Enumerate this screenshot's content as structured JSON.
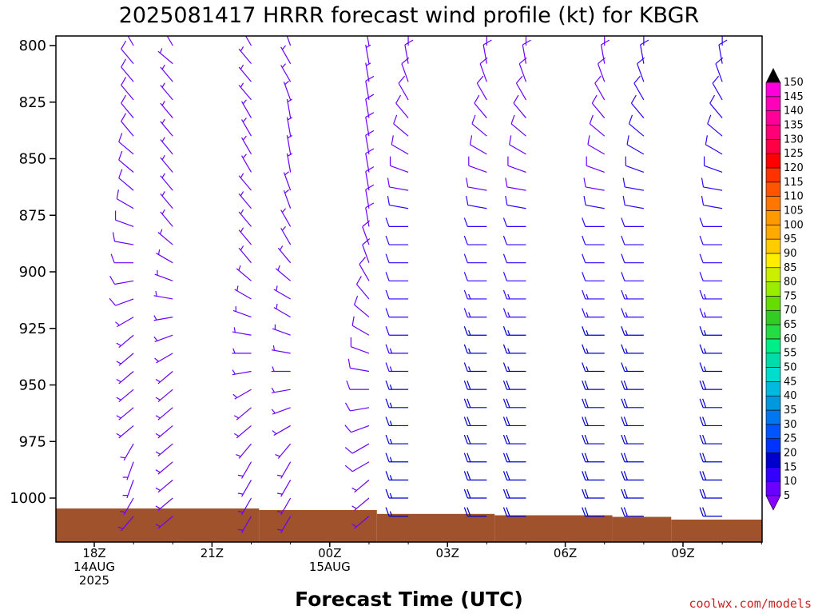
{
  "chart_data": {
    "type": "wind-barb-time-height",
    "title": "2025081417 HRRR forecast wind profile (kt) for KBGR",
    "xlabel": "Forecast Time (UTC)",
    "credit": "coolwx.com/models",
    "x_ticks": [
      {
        "hour": 18,
        "lines": [
          "18Z",
          "14AUG",
          "2025"
        ]
      },
      {
        "hour": 21,
        "lines": [
          "21Z"
        ]
      },
      {
        "hour": 24,
        "lines": [
          "00Z",
          "15AUG"
        ]
      },
      {
        "hour": 27,
        "lines": [
          "03Z"
        ]
      },
      {
        "hour": 30,
        "lines": [
          "06Z"
        ]
      },
      {
        "hour": 33,
        "lines": [
          "09Z"
        ]
      }
    ],
    "xlim": [
      17,
      35
    ],
    "ylim": [
      1018,
      796
    ],
    "y_ticks": [
      800,
      825,
      850,
      875,
      900,
      925,
      950,
      975,
      1000
    ],
    "units": "kt",
    "colorbar_levels": [
      5,
      10,
      15,
      20,
      25,
      30,
      35,
      40,
      45,
      50,
      55,
      60,
      65,
      70,
      75,
      80,
      85,
      90,
      95,
      100,
      105,
      110,
      115,
      120,
      125,
      130,
      135,
      140,
      145,
      150
    ],
    "colorbar_colors": [
      "#8800ff",
      "#6a00ff",
      "#3300ff",
      "#0000cc",
      "#0033ff",
      "#0055ff",
      "#0077ee",
      "#0099dd",
      "#00bbdd",
      "#00ddcc",
      "#00ddaa",
      "#00ee88",
      "#22dd44",
      "#33cc22",
      "#66dd00",
      "#99ee00",
      "#ccee00",
      "#ffee00",
      "#ffcc00",
      "#ffaa00",
      "#ff9900",
      "#ff7700",
      "#ff5500",
      "#ff3300",
      "#ff0000",
      "#ff0044",
      "#ff0077",
      "#ff0099",
      "#ff00bb",
      "#ff00dd",
      "#ff00ff"
    ],
    "wind_profiles": [
      {
        "hour": 17,
        "spd": [
          null,
          null,
          null,
          null,
          null,
          null,
          null,
          null,
          null,
          null,
          null,
          null,
          null,
          null,
          null,
          null,
          null,
          null,
          null,
          7,
          7,
          7,
          7,
          7,
          7,
          7,
          7
        ],
        "dir": [
          null,
          null,
          null,
          null,
          null,
          null,
          null,
          null,
          null,
          null,
          null,
          null,
          null,
          null,
          null,
          null,
          null,
          null,
          null,
          185,
          185,
          185,
          185,
          185,
          185,
          185,
          185
        ]
      },
      {
        "hour": 19,
        "spd": [
          8,
          8,
          8,
          8,
          8,
          8,
          8,
          8,
          8,
          8,
          8,
          8,
          8,
          8,
          8,
          6,
          6,
          6,
          6,
          6,
          6,
          6,
          5,
          5,
          5,
          5,
          5
        ],
        "dir": [
          330,
          320,
          320,
          320,
          320,
          320,
          310,
          310,
          310,
          300,
          290,
          280,
          270,
          260,
          250,
          240,
          230,
          230,
          230,
          230,
          230,
          230,
          210,
          200,
          200,
          210,
          220
        ]
      },
      {
        "hour": 20,
        "spd": [
          7,
          7,
          7,
          7,
          7,
          7,
          7,
          7,
          7,
          7,
          7,
          7,
          7,
          7,
          7,
          7,
          6,
          6,
          6,
          6,
          6,
          6,
          6,
          6,
          6,
          6,
          6
        ],
        "dir": [
          330,
          310,
          320,
          320,
          320,
          320,
          320,
          320,
          320,
          320,
          320,
          310,
          300,
          290,
          280,
          260,
          250,
          240,
          230,
          230,
          230,
          230,
          230,
          230,
          230,
          230,
          230
        ]
      },
      {
        "hour": 22,
        "spd": [
          7,
          7,
          7,
          7,
          7,
          7,
          7,
          7,
          7,
          7,
          7,
          7,
          6,
          6,
          6,
          6,
          6,
          6,
          6,
          6,
          6,
          6,
          6,
          6,
          6,
          6,
          6
        ],
        "dir": [
          330,
          320,
          320,
          320,
          330,
          330,
          330,
          330,
          320,
          320,
          320,
          320,
          320,
          310,
          300,
          290,
          280,
          270,
          260,
          240,
          230,
          230,
          220,
          210,
          210,
          210,
          210
        ]
      },
      {
        "hour": 23,
        "spd": [
          7,
          7,
          7,
          7,
          7,
          7,
          7,
          7,
          7,
          7,
          7,
          7,
          7,
          7,
          6,
          6,
          6,
          6,
          6,
          6,
          6,
          6,
          6,
          6,
          6,
          6,
          6
        ],
        "dir": [
          340,
          330,
          330,
          340,
          350,
          350,
          350,
          350,
          340,
          340,
          330,
          330,
          320,
          310,
          300,
          300,
          290,
          280,
          270,
          260,
          250,
          240,
          220,
          210,
          210,
          210,
          210
        ]
      },
      {
        "hour": 25,
        "spd": [
          7,
          7,
          7,
          8,
          8,
          8,
          8,
          8,
          8,
          8,
          8,
          8,
          8,
          8,
          8,
          8,
          8,
          8,
          8,
          8,
          8,
          8,
          8,
          8,
          7,
          7,
          7
        ],
        "dir": [
          350,
          350,
          350,
          350,
          350,
          350,
          350,
          350,
          350,
          350,
          350,
          340,
          340,
          330,
          320,
          310,
          300,
          290,
          280,
          270,
          260,
          250,
          240,
          240,
          230,
          230,
          230
        ]
      },
      {
        "hour": 26,
        "spd": [
          8,
          8,
          8,
          8,
          8,
          8,
          8,
          9,
          9,
          10,
          12,
          12,
          12,
          12,
          12,
          12,
          12,
          14,
          14,
          15,
          15,
          15,
          15,
          15,
          15,
          15,
          15
        ],
        "dir": [
          360,
          350,
          340,
          330,
          320,
          310,
          300,
          290,
          280,
          280,
          270,
          270,
          270,
          270,
          270,
          270,
          270,
          270,
          270,
          270,
          270,
          270,
          270,
          270,
          270,
          270,
          270
        ]
      },
      {
        "hour": 28,
        "spd": [
          8,
          8,
          8,
          8,
          8,
          8,
          8,
          9,
          9,
          10,
          12,
          12,
          12,
          12,
          14,
          14,
          15,
          15,
          15,
          18,
          18,
          18,
          18,
          18,
          18,
          18,
          18
        ],
        "dir": [
          360,
          350,
          340,
          330,
          320,
          310,
          300,
          290,
          280,
          280,
          270,
          270,
          270,
          270,
          270,
          270,
          270,
          270,
          270,
          270,
          270,
          270,
          270,
          270,
          270,
          270,
          270
        ]
      },
      {
        "hour": 29,
        "spd": [
          8,
          8,
          8,
          8,
          8,
          8,
          8,
          9,
          9,
          10,
          12,
          12,
          12,
          12,
          14,
          14,
          15,
          15,
          15,
          18,
          18,
          18,
          18,
          18,
          18,
          18,
          18
        ],
        "dir": [
          360,
          350,
          340,
          330,
          320,
          310,
          300,
          290,
          280,
          280,
          270,
          270,
          270,
          270,
          270,
          270,
          270,
          270,
          270,
          270,
          270,
          270,
          270,
          270,
          270,
          270,
          270
        ]
      },
      {
        "hour": 31,
        "spd": [
          8,
          8,
          8,
          8,
          8,
          8,
          8,
          9,
          9,
          10,
          12,
          12,
          12,
          12,
          14,
          14,
          15,
          15,
          15,
          18,
          18,
          18,
          18,
          18,
          18,
          18,
          18
        ],
        "dir": [
          360,
          350,
          340,
          330,
          320,
          310,
          300,
          290,
          280,
          280,
          270,
          270,
          270,
          270,
          270,
          270,
          270,
          270,
          270,
          270,
          270,
          270,
          270,
          270,
          270,
          270,
          270
        ]
      },
      {
        "hour": 32,
        "spd": [
          10,
          10,
          10,
          10,
          10,
          10,
          10,
          10,
          10,
          10,
          12,
          12,
          12,
          12,
          14,
          14,
          15,
          15,
          15,
          18,
          18,
          18,
          18,
          18,
          18,
          18,
          18
        ],
        "dir": [
          360,
          350,
          340,
          330,
          320,
          310,
          300,
          290,
          280,
          280,
          270,
          270,
          270,
          270,
          270,
          270,
          270,
          270,
          270,
          270,
          270,
          270,
          270,
          270,
          270,
          270,
          270
        ]
      },
      {
        "hour": 34,
        "spd": [
          10,
          10,
          10,
          10,
          10,
          10,
          10,
          10,
          10,
          10,
          12,
          12,
          12,
          12,
          14,
          14,
          15,
          15,
          15,
          18,
          18,
          18,
          18,
          18,
          18,
          18,
          18
        ],
        "dir": [
          360,
          350,
          340,
          330,
          320,
          310,
          300,
          290,
          280,
          280,
          270,
          270,
          270,
          270,
          270,
          270,
          270,
          270,
          270,
          270,
          270,
          270,
          270,
          270,
          270,
          270,
          270
        ]
      }
    ],
    "barb_levels_hpa": [
      800,
      808,
      816,
      824,
      832,
      840,
      848,
      856,
      864,
      872,
      880,
      888,
      896,
      904,
      912,
      920,
      928,
      936,
      944,
      952,
      960,
      968,
      976,
      984,
      992,
      1000,
      1008
    ],
    "terrain": [
      {
        "hour_start": 17,
        "hour_end": 22.2,
        "hpa": 1004.6
      },
      {
        "hour_start": 22.2,
        "hour_end": 25.2,
        "hpa": 1005.3
      },
      {
        "hour_start": 25.2,
        "hour_end": 28.2,
        "hpa": 1007.0
      },
      {
        "hour_start": 28.2,
        "hour_end": 31.2,
        "hpa": 1007.6
      },
      {
        "hour_start": 31.2,
        "hour_end": 32.7,
        "hpa": 1008.3
      },
      {
        "hour_start": 32.7,
        "hour_end": 35.7,
        "hpa": 1009.5
      },
      {
        "hour_start": 35.7,
        "hour_end": 38.7,
        "hpa": 1010.0
      },
      {
        "hour_start": 38.7,
        "hour_end": 43.2,
        "hpa": 1010.7
      },
      {
        "hour_start": 43.2,
        "hour_end": 47,
        "hpa": 1011.5
      }
    ],
    "terrain_color": "#a0522d"
  }
}
